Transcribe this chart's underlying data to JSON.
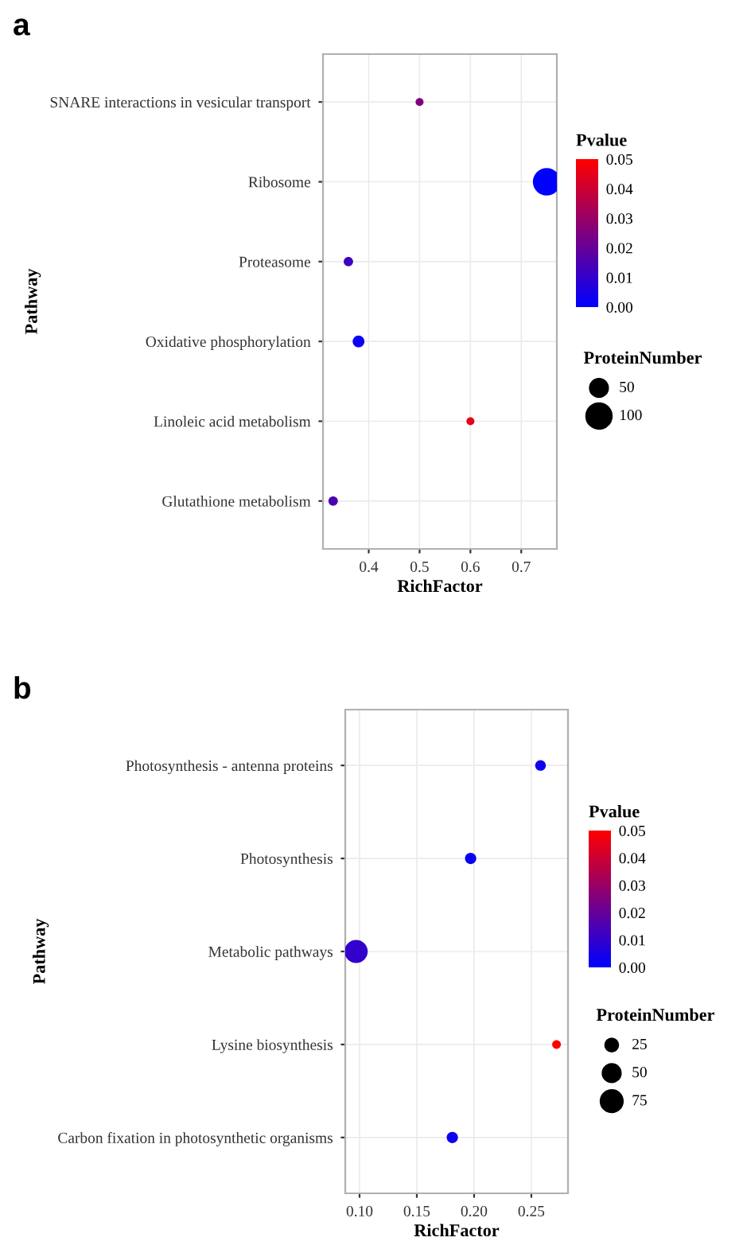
{
  "chart_data": [
    {
      "type": "bubble",
      "title": "a",
      "orientation": "horizontal",
      "xlabel": "RichFactor",
      "ylabel": "Pathway",
      "clabel": "Pvalue",
      "legend_title": "ProteinNumber",
      "categories": [
        "SNARE interactions in vesicular transport",
        "Ribosome",
        "Proteasome",
        "Oxidative phosphorylation",
        "Linoleic acid metabolism",
        "Glutathione metabolism"
      ],
      "values": [
        0.5,
        0.75,
        0.36,
        0.38,
        0.6,
        0.33
      ],
      "sizes": [
        10,
        120,
        14,
        22,
        10,
        14
      ],
      "cvalues": [
        0.025,
        0.0,
        0.012,
        0.002,
        0.045,
        0.015
      ],
      "size_legend": [
        50,
        100
      ],
      "xlim": [
        0.31,
        0.77
      ],
      "xticks": [
        0.4,
        0.5,
        0.6,
        0.7
      ],
      "clim": [
        0.0,
        0.05
      ],
      "cticks": [
        {
          "value": 0.0,
          "label": "0.00"
        },
        {
          "value": 0.01,
          "label": "0.01"
        },
        {
          "value": 0.02,
          "label": "0.02"
        },
        {
          "value": 0.03,
          "label": "0.03"
        },
        {
          "value": 0.04,
          "label": "0.04"
        },
        {
          "value": 0.05,
          "label": "0.05"
        }
      ],
      "grid": true
    },
    {
      "type": "bubble",
      "title": "b",
      "orientation": "horizontal",
      "xlabel": "RichFactor",
      "ylabel": "Pathway",
      "clabel": "Pvalue",
      "legend_title": "ProteinNumber",
      "categories": [
        "Photosynthesis - antenna proteins",
        "Photosynthesis",
        "Metabolic pathways",
        "Lysine biosynthesis",
        "Carbon fixation in photosynthetic organisms"
      ],
      "values": [
        0.258,
        0.197,
        0.097,
        0.272,
        0.181
      ],
      "sizes": [
        18,
        20,
        85,
        12,
        20
      ],
      "cvalues": [
        0.003,
        0.002,
        0.01,
        0.05,
        0.003
      ],
      "size_legend": [
        25,
        50,
        75
      ],
      "xlim": [
        0.0875,
        0.282
      ],
      "xticks": [
        {
          "value": 0.1,
          "label": "0.10"
        },
        {
          "value": 0.15,
          "label": "0.15"
        },
        {
          "value": 0.2,
          "label": "0.20"
        },
        {
          "value": 0.25,
          "label": "0.25"
        }
      ],
      "clim": [
        0.0,
        0.05
      ],
      "cticks": [
        {
          "value": 0.0,
          "label": "0.00"
        },
        {
          "value": 0.01,
          "label": "0.01"
        },
        {
          "value": 0.02,
          "label": "0.02"
        },
        {
          "value": 0.03,
          "label": "0.03"
        },
        {
          "value": 0.04,
          "label": "0.04"
        },
        {
          "value": 0.05,
          "label": "0.05"
        }
      ],
      "grid": true
    }
  ]
}
